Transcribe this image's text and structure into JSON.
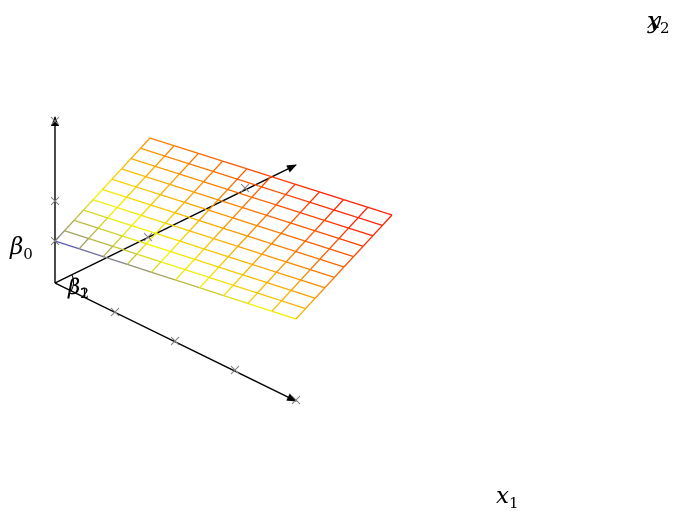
{
  "labels": {
    "beta0": {
      "base": "β",
      "sub": "0"
    },
    "beta1": {
      "base": "β",
      "sub": "1"
    },
    "beta2": {
      "base": "β",
      "sub": "2"
    },
    "x1": {
      "base": "x",
      "sub": "1"
    },
    "x2": {
      "base": "x",
      "sub": "2"
    },
    "y": {
      "base": "y",
      "sub": ""
    }
  },
  "colors": {
    "axis": "#000000",
    "tick": "#808080",
    "surface_low": "#3a3ad8",
    "surface_mid": "#f5f500",
    "surface_high": "#ff2000"
  },
  "surface": {
    "rows": 10,
    "cols": 10
  }
}
